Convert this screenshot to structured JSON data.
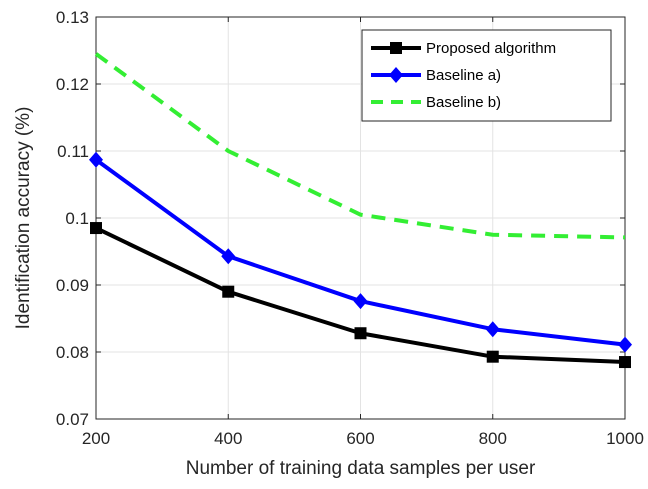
{
  "chart_data": {
    "type": "line",
    "title": "",
    "xlabel": "Number of training data samples per user",
    "ylabel": "Identification accuracy (%)",
    "xlim": [
      200,
      1000
    ],
    "ylim": [
      0.07,
      0.13
    ],
    "xticks": [
      200,
      400,
      600,
      800,
      1000
    ],
    "xtick_labels": [
      "200",
      "400",
      "600",
      "800",
      "1000"
    ],
    "yticks": [
      0.07,
      0.08,
      0.09,
      0.1,
      0.11,
      0.12,
      0.13
    ],
    "ytick_labels": [
      "0.07",
      "0.08",
      "0.09",
      "0.1",
      "0.11",
      "0.12",
      "0.13"
    ],
    "grid": true,
    "legend_position": "top-right",
    "x": [
      200,
      400,
      600,
      800,
      1000
    ],
    "series": [
      {
        "name": "Proposed algorithm",
        "values": [
          0.0985,
          0.089,
          0.0828,
          0.0793,
          0.0785
        ],
        "color": "#000000",
        "marker": "square",
        "dash": "solid"
      },
      {
        "name": "Baseline a)",
        "values": [
          0.1087,
          0.0943,
          0.0876,
          0.0834,
          0.0811
        ],
        "color": "#0000ff",
        "marker": "diamond",
        "dash": "solid"
      },
      {
        "name": "Baseline b)",
        "values": [
          0.1245,
          0.11,
          0.1005,
          0.0975,
          0.0971
        ],
        "color": "#33ee33",
        "marker": "none",
        "dash": "dashed"
      }
    ]
  }
}
